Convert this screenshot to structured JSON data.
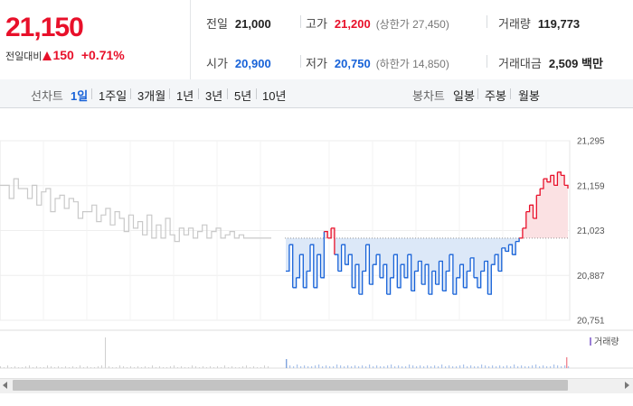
{
  "summary": {
    "price": "21,150",
    "change_label": "전일대비",
    "change_value": "150",
    "change_rate": "+0.71%",
    "prev_close": {
      "label": "전일",
      "value": "21,000"
    },
    "open": {
      "label": "시가",
      "value": "20,900"
    },
    "high": {
      "label": "고가",
      "value": "21,200",
      "limit_label": "(상한가 27,450)"
    },
    "low": {
      "label": "저가",
      "value": "20,750",
      "limit_label": "(하한가 14,850)"
    },
    "volume": {
      "label": "거래량",
      "value": "119,773"
    },
    "amount": {
      "label": "거래대금",
      "value": "2,509 백만"
    }
  },
  "period_bar": {
    "line_chart_label": "선차트",
    "line_periods": [
      "1일",
      "1주일",
      "3개월",
      "1년",
      "3년",
      "5년",
      "10년"
    ],
    "active_period": "1일",
    "candle_chart_label": "봉차트",
    "candle_periods": [
      "일봉",
      "주봉",
      "월봉"
    ]
  },
  "chart_data": {
    "type": "line",
    "title": "",
    "xlabel": "",
    "ylabel": "",
    "y_ticks": [
      "21,295",
      "21,159",
      "21,023",
      "20,887",
      "20,751"
    ],
    "ylim": [
      20751,
      21295
    ],
    "baseline": 21000,
    "volume_legend": "거래량",
    "series": [
      {
        "x_label": "previous day",
        "values": [
          21160,
          21160,
          21120,
          21180,
          21150,
          21150,
          21120,
          21160,
          21100,
          21140,
          21150,
          21080,
          21120,
          21130,
          21090,
          21120,
          21110,
          21060,
          21080,
          21080,
          21100,
          21050,
          21070,
          21090,
          21040,
          21080,
          21060,
          21020,
          21070,
          21030,
          21050,
          21010,
          21070,
          21000,
          21040,
          21000,
          21060,
          21010,
          20990,
          21030,
          21010,
          21030,
          21000,
          21020,
          21040,
          21000,
          21020,
          21030,
          21000,
          21010,
          21020,
          21000,
          21010,
          21000,
          21000,
          21000,
          21000,
          21000,
          21000,
          21000
        ]
      },
      {
        "x_label": "today",
        "values": [
          20900,
          20980,
          20850,
          20880,
          20950,
          20850,
          20900,
          20980,
          20850,
          20950,
          20880,
          21020,
          21000,
          21030,
          20950,
          20900,
          20980,
          20920,
          20950,
          20850,
          20920,
          20830,
          20900,
          20980,
          20860,
          20920,
          20950,
          20880,
          20920,
          20830,
          20880,
          20950,
          20850,
          20920,
          20880,
          20950,
          20840,
          20900,
          20930,
          20860,
          20920,
          20830,
          20900,
          20860,
          20930,
          20840,
          20900,
          20950,
          20830,
          20880,
          20920,
          20850,
          20900,
          20940,
          20880,
          20850,
          20900,
          20930,
          20830,
          20920,
          20950,
          20900,
          20970,
          20960,
          20980,
          20950,
          20990,
          21000,
          21030,
          21080,
          21100,
          21060,
          21130,
          21150,
          21180,
          21170,
          21190,
          21160,
          21200,
          21190,
          21160,
          21150
        ]
      }
    ],
    "colors": {
      "up": "#e8102a",
      "down": "#1762d8",
      "prev": "#c9c9c9"
    }
  },
  "scrollbar": {
    "left_arrow": "◂",
    "right_arrow": "▸"
  }
}
